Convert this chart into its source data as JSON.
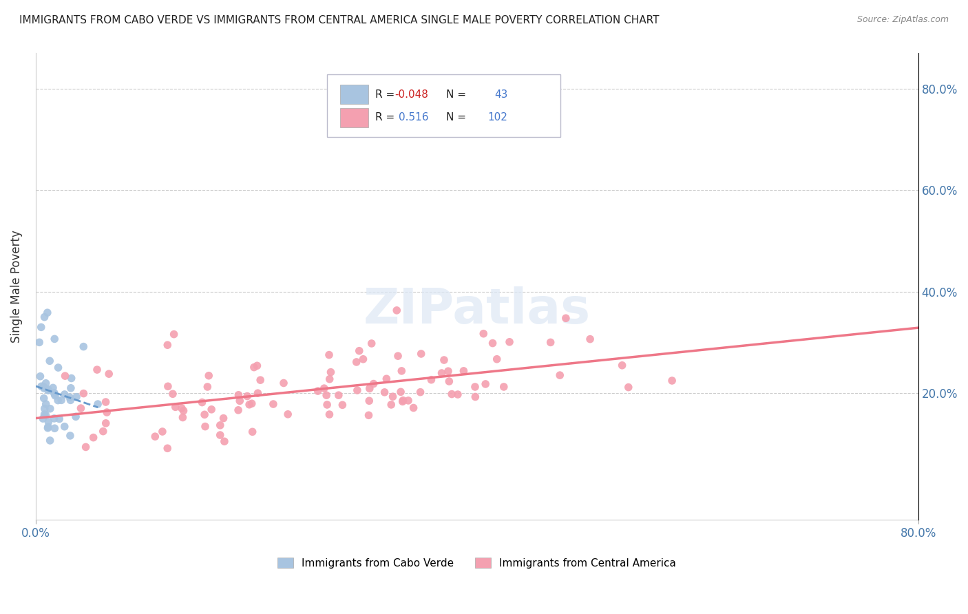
{
  "title": "IMMIGRANTS FROM CABO VERDE VS IMMIGRANTS FROM CENTRAL AMERICA SINGLE MALE POVERTY CORRELATION CHART",
  "source": "Source: ZipAtlas.com",
  "ylabel": "Single Male Poverty",
  "ytick_values": [
    0.2,
    0.4,
    0.6,
    0.8
  ],
  "xlim": [
    0.0,
    0.8
  ],
  "ylim": [
    -0.05,
    0.87
  ],
  "legend_label1": "Immigrants from Cabo Verde",
  "legend_label2": "Immigrants from Central America",
  "R1": -0.048,
  "N1": 43,
  "R2": 0.516,
  "N2": 102,
  "color1": "#a8c4e0",
  "color2": "#f4a0b0",
  "line_color1": "#6699cc",
  "line_color2": "#ee7788"
}
